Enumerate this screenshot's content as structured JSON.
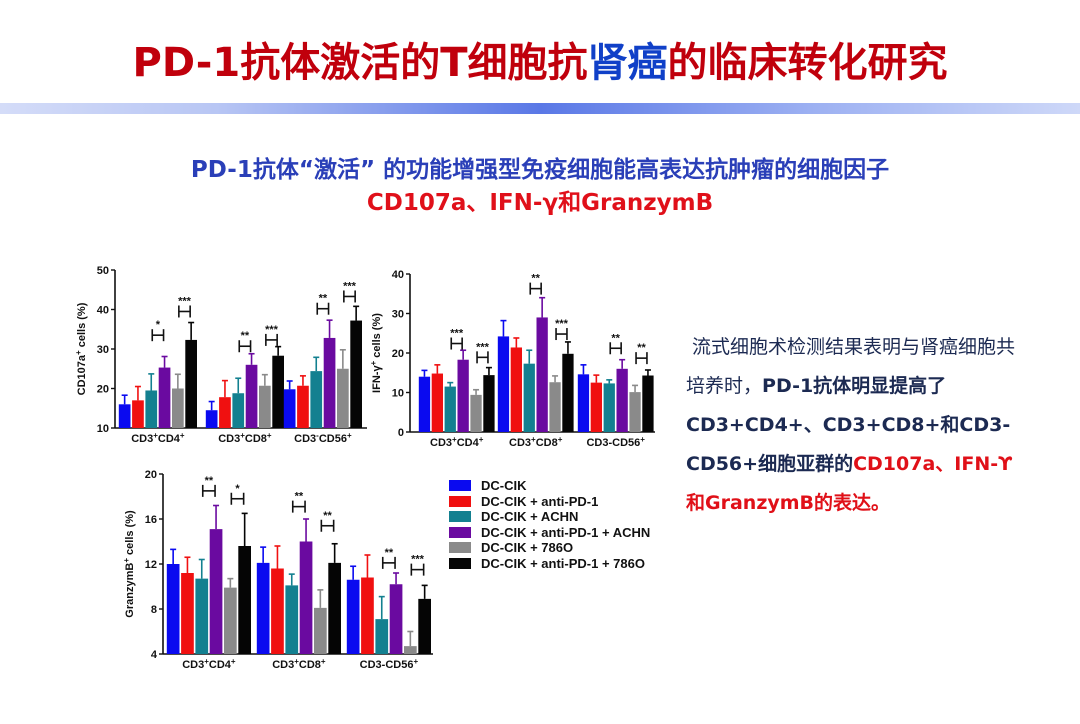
{
  "header": {
    "title_part1": "PD-1抗体激活的T细胞抗",
    "title_highlight": "肾癌",
    "title_part2": "的临床转化研究"
  },
  "subtitle": {
    "line1": "PD-1抗体“激活” 的功能增强型免疫细胞能高表达抗肿瘤的细胞因子",
    "line2": "CD107a、IFN-γ和GranzymB"
  },
  "side_text": {
    "normal": "流式细胞术检测结果表明与肾癌细胞共培养时，",
    "bold": "PD-1抗体明显提高了CD3+CD4+、CD3+CD8+和CD3-CD56+细胞亚群的",
    "red": "CD107a、IFN-ϒ和GranzymB的表达。"
  },
  "legend": {
    "items": [
      {
        "label": "DC-CIK",
        "color": "#0a0af0"
      },
      {
        "label": "DC-CIK + anti-PD-1",
        "color": "#f01010"
      },
      {
        "label": "DC-CIK + ACHN",
        "color": "#138090"
      },
      {
        "label": "DC-CIK + anti-PD-1 + ACHN",
        "color": "#6a0aa0"
      },
      {
        "label": "DC-CIK + 786O",
        "color": "#8a8a8a"
      },
      {
        "label": "DC-CIK + anti-PD-1 + 786O",
        "color": "#050505"
      }
    ]
  },
  "chart_data": [
    {
      "type": "bar",
      "title": "",
      "ylabel": "CD107a+ cells (%)",
      "ylim": [
        10,
        50
      ],
      "yticks": [
        10,
        20,
        30,
        40,
        50
      ],
      "categories": [
        "CD3+CD4+",
        "CD3+CD8+",
        "CD3-CD56+"
      ],
      "category_labels": [
        [
          "CD3",
          "+",
          "CD4",
          "+"
        ],
        [
          "CD3",
          "+",
          "CD8",
          "+"
        ],
        [
          "CD3",
          "-",
          "CD56",
          "+"
        ]
      ],
      "series": [
        {
          "name": "DC-CIK",
          "values": [
            16.0,
            14.5,
            19.8
          ],
          "errors": [
            2.3,
            2.2,
            2.1
          ]
        },
        {
          "name": "DC-CIK + anti-PD-1",
          "values": [
            17.0,
            17.8,
            20.7
          ],
          "errors": [
            3.5,
            4.2,
            2.5
          ]
        },
        {
          "name": "DC-CIK + ACHN",
          "values": [
            19.5,
            18.8,
            24.4
          ],
          "errors": [
            4.2,
            3.8,
            3.5
          ]
        },
        {
          "name": "DC-CIK + anti-PD-1 + ACHN",
          "values": [
            25.3,
            26.0,
            32.8
          ],
          "errors": [
            2.8,
            2.8,
            4.5
          ]
        },
        {
          "name": "DC-CIK + 786O",
          "values": [
            20.0,
            20.7,
            25.0
          ],
          "errors": [
            3.6,
            2.8,
            4.8
          ]
        },
        {
          "name": "DC-CIK + anti-PD-1 + 786O",
          "values": [
            32.3,
            28.3,
            37.2
          ],
          "errors": [
            4.4,
            2.3,
            3.6
          ]
        }
      ],
      "significance": [
        {
          "category": 0,
          "pair": [
            2,
            3
          ],
          "label": "*",
          "y": 33.5
        },
        {
          "category": 0,
          "pair": [
            4,
            5
          ],
          "label": "***",
          "y": 39.5
        },
        {
          "category": 1,
          "pair": [
            2,
            3
          ],
          "label": "**",
          "y": 30.7
        },
        {
          "category": 1,
          "pair": [
            4,
            5
          ],
          "label": "***",
          "y": 32.3
        },
        {
          "category": 2,
          "pair": [
            2,
            3
          ],
          "label": "**",
          "y": 40.2
        },
        {
          "category": 2,
          "pair": [
            4,
            5
          ],
          "label": "***",
          "y": 43.3
        }
      ]
    },
    {
      "type": "bar",
      "title": "",
      "ylabel": "IFN-γ+ cells (%)",
      "ylim": [
        0,
        40
      ],
      "yticks": [
        0,
        10,
        20,
        30,
        40
      ],
      "categories": [
        "CD3+CD4+",
        "CD3+CD8+",
        "CD3-CD56+"
      ],
      "category_labels": [
        [
          "CD3",
          "+",
          "CD4",
          "+"
        ],
        [
          "CD3",
          "+",
          "CD8",
          "+"
        ],
        [
          "CD3-CD56",
          "+",
          "",
          ""
        ]
      ],
      "series": [
        {
          "name": "DC-CIK",
          "values": [
            14.0,
            24.2,
            14.6
          ],
          "errors": [
            1.6,
            4.0,
            2.4
          ]
        },
        {
          "name": "DC-CIK + anti-PD-1",
          "values": [
            14.8,
            21.4,
            12.5
          ],
          "errors": [
            2.2,
            2.4,
            1.9
          ]
        },
        {
          "name": "DC-CIK + ACHN",
          "values": [
            11.5,
            17.3,
            12.3
          ],
          "errors": [
            1.0,
            3.4,
            0.9
          ]
        },
        {
          "name": "DC-CIK + anti-PD-1 + ACHN",
          "values": [
            18.3,
            29.0,
            16.0
          ],
          "errors": [
            2.4,
            5.0,
            2.3
          ]
        },
        {
          "name": "DC-CIK + 786O",
          "values": [
            9.4,
            12.6,
            10.1
          ],
          "errors": [
            1.3,
            1.6,
            1.7
          ]
        },
        {
          "name": "DC-CIK + anti-PD-1 + 786O",
          "values": [
            14.4,
            19.8,
            14.3
          ],
          "errors": [
            1.9,
            3.0,
            1.4
          ]
        }
      ],
      "significance": [
        {
          "category": 0,
          "pair": [
            2,
            3
          ],
          "label": "***",
          "y": 22.4
        },
        {
          "category": 0,
          "pair": [
            4,
            5
          ],
          "label": "***",
          "y": 18.9
        },
        {
          "category": 1,
          "pair": [
            2,
            3
          ],
          "label": "**",
          "y": 36.3
        },
        {
          "category": 1,
          "pair": [
            4,
            5
          ],
          "label": "***",
          "y": 24.8
        },
        {
          "category": 2,
          "pair": [
            2,
            3
          ],
          "label": "**",
          "y": 21.2
        },
        {
          "category": 2,
          "pair": [
            4,
            5
          ],
          "label": "**",
          "y": 18.7
        }
      ]
    },
    {
      "type": "bar",
      "title": "",
      "ylabel": "GranzymB+ cells (%)",
      "ylim": [
        4,
        20
      ],
      "yticks": [
        4,
        8,
        12,
        16,
        20
      ],
      "categories": [
        "CD3+CD4+",
        "CD3+CD8+",
        "CD3-CD56+"
      ],
      "category_labels": [
        [
          "CD3",
          "+",
          "CD4",
          "+"
        ],
        [
          "CD3",
          "+",
          "CD8",
          "+"
        ],
        [
          "CD3-CD56",
          "+",
          "",
          ""
        ]
      ],
      "series": [
        {
          "name": "DC-CIK",
          "values": [
            12.0,
            12.1,
            10.6
          ],
          "errors": [
            1.3,
            1.4,
            1.2
          ]
        },
        {
          "name": "DC-CIK + anti-PD-1",
          "values": [
            11.2,
            11.6,
            10.8
          ],
          "errors": [
            1.4,
            2.0,
            2.0
          ]
        },
        {
          "name": "DC-CIK + ACHN",
          "values": [
            10.7,
            10.1,
            7.1
          ],
          "errors": [
            1.7,
            1.0,
            2.0
          ]
        },
        {
          "name": "DC-CIK + anti-PD-1 + ACHN",
          "values": [
            15.1,
            14.0,
            10.2
          ],
          "errors": [
            2.1,
            2.0,
            1.0
          ]
        },
        {
          "name": "DC-CIK + 786O",
          "values": [
            9.9,
            8.1,
            4.7
          ],
          "errors": [
            0.8,
            1.6,
            1.3
          ]
        },
        {
          "name": "DC-CIK + anti-PD-1 + 786O",
          "values": [
            13.6,
            12.1,
            8.9
          ],
          "errors": [
            2.9,
            1.7,
            1.2
          ]
        }
      ],
      "significance": [
        {
          "category": 0,
          "pair": [
            2,
            3
          ],
          "label": "**",
          "y": 18.5
        },
        {
          "category": 0,
          "pair": [
            4,
            5
          ],
          "label": "*",
          "y": 17.8
        },
        {
          "category": 1,
          "pair": [
            2,
            3
          ],
          "label": "**",
          "y": 17.1
        },
        {
          "category": 1,
          "pair": [
            4,
            5
          ],
          "label": "**",
          "y": 15.4
        },
        {
          "category": 2,
          "pair": [
            2,
            3
          ],
          "label": "**",
          "y": 12.1
        },
        {
          "category": 2,
          "pair": [
            4,
            5
          ],
          "label": "***",
          "y": 11.5
        }
      ]
    }
  ]
}
